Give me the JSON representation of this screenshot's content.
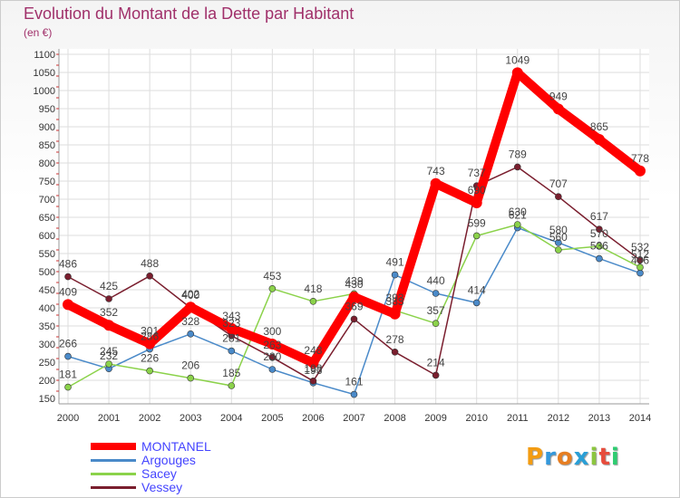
{
  "header": {
    "title": "Evolution du Montant de la Dette par Habitant",
    "unit": "(en €)"
  },
  "logo": {
    "text": "Proxiti",
    "letters": [
      {
        "ch": "P",
        "color": "#f39c12"
      },
      {
        "ch": "r",
        "color": "#3498db"
      },
      {
        "ch": "o",
        "color": "#e67e22"
      },
      {
        "ch": "x",
        "color": "#2a9fd6"
      },
      {
        "ch": "i",
        "color": "#8cc63f"
      },
      {
        "ch": "t",
        "color": "#e74c3c"
      },
      {
        "ch": "i",
        "color": "#2ecc71"
      }
    ]
  },
  "chart_data": {
    "type": "line",
    "title": "Evolution du Montant de la Dette par Habitant",
    "ylabel": "(en €)",
    "xlabel": "",
    "x": [
      "2000",
      "2001",
      "2002",
      "2003",
      "2004",
      "2005",
      "2006",
      "2007",
      "2008",
      "2009",
      "2010",
      "2011",
      "2012",
      "2013",
      "2014"
    ],
    "ylim": [
      150,
      1100
    ],
    "yticks": [
      150,
      200,
      250,
      300,
      350,
      400,
      450,
      500,
      550,
      600,
      650,
      700,
      750,
      800,
      850,
      900,
      950,
      1000,
      1050,
      1100
    ],
    "grid": true,
    "legend_position": "bottom-left",
    "series": [
      {
        "name": "MONTANEL",
        "color": "#ff0000",
        "values": [
          409,
          352,
          301,
          402,
          343,
          300,
          248,
          430,
          383,
          743,
          690,
          1049,
          949,
          865,
          778
        ]
      },
      {
        "name": "Argouges",
        "color": "#4a8ac9",
        "values": [
          266,
          232,
          286,
          328,
          281,
          230,
          193,
          161,
          491,
          440,
          414,
          621,
          580,
          536,
          496
        ]
      },
      {
        "name": "Sacey",
        "color": "#8bd24a",
        "values": [
          181,
          245,
          226,
          206,
          185,
          453,
          418,
          439,
          393,
          357,
          599,
          630,
          560,
          570,
          512
        ]
      },
      {
        "name": "Vessey",
        "color": "#7a1e2e",
        "values": [
          486,
          425,
          488,
          400,
          323,
          263,
          198,
          369,
          278,
          214,
          737,
          789,
          707,
          617,
          532
        ]
      }
    ]
  }
}
